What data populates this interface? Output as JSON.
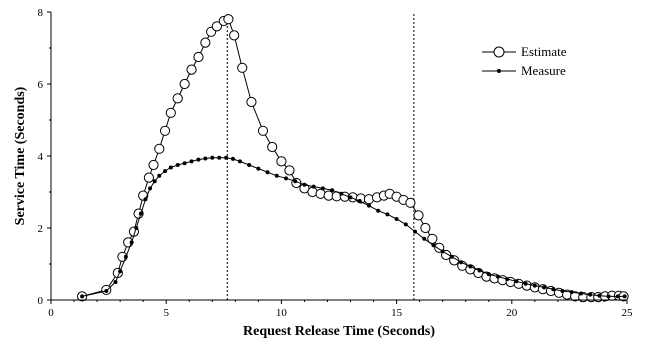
{
  "chart_data": {
    "type": "line",
    "xlabel": "Request Release Time (Seconds)",
    "ylabel": "Service Time (Seconds)",
    "xlim": [
      0,
      25
    ],
    "ylim": [
      0,
      8
    ],
    "xticks": [
      0,
      5,
      10,
      15,
      20,
      25
    ],
    "yticks": [
      0,
      2,
      4,
      6,
      8
    ],
    "grid": false,
    "legend_position": "top-right",
    "reference_lines_x": [
      7.65,
      15.75
    ],
    "series": [
      {
        "name": "Estimate",
        "marker": "open-circle",
        "x": [
          1.35,
          2.4,
          2.9,
          3.1,
          3.35,
          3.6,
          3.8,
          4.0,
          4.25,
          4.45,
          4.7,
          4.95,
          5.2,
          5.5,
          5.8,
          6.1,
          6.4,
          6.7,
          6.95,
          7.2,
          7.5,
          7.7,
          7.95,
          8.3,
          8.7,
          9.2,
          9.6,
          10.0,
          10.35,
          10.65,
          11.0,
          11.35,
          11.7,
          12.05,
          12.4,
          12.75,
          13.1,
          13.45,
          13.8,
          14.15,
          14.45,
          14.7,
          15.0,
          15.3,
          15.6,
          15.95,
          16.25,
          16.55,
          16.85,
          17.15,
          17.5,
          17.85,
          18.2,
          18.55,
          18.9,
          19.25,
          19.6,
          19.95,
          20.3,
          20.65,
          21.0,
          21.35,
          21.7,
          22.05,
          22.4,
          22.75,
          23.1,
          23.45,
          23.75,
          24.05,
          24.35,
          24.65,
          24.85
        ],
        "y": [
          0.1,
          0.28,
          0.75,
          1.2,
          1.6,
          1.9,
          2.4,
          2.9,
          3.4,
          3.75,
          4.2,
          4.7,
          5.2,
          5.6,
          6.0,
          6.4,
          6.75,
          7.15,
          7.45,
          7.6,
          7.75,
          7.8,
          7.35,
          6.45,
          5.5,
          4.7,
          4.25,
          3.85,
          3.6,
          3.25,
          3.1,
          3.0,
          2.95,
          2.9,
          2.88,
          2.87,
          2.85,
          2.82,
          2.8,
          2.85,
          2.9,
          2.95,
          2.87,
          2.78,
          2.7,
          2.35,
          2.0,
          1.7,
          1.45,
          1.25,
          1.1,
          0.95,
          0.85,
          0.75,
          0.65,
          0.6,
          0.55,
          0.5,
          0.45,
          0.4,
          0.35,
          0.3,
          0.25,
          0.2,
          0.15,
          0.1,
          0.08,
          0.08,
          0.08,
          0.1,
          0.12,
          0.12,
          0.1
        ]
      },
      {
        "name": "Measure",
        "marker": "filled-dot",
        "x": [
          1.35,
          2.4,
          2.8,
          3.0,
          3.25,
          3.5,
          3.7,
          3.9,
          4.1,
          4.3,
          4.5,
          4.7,
          4.95,
          5.2,
          5.5,
          5.8,
          6.1,
          6.4,
          6.7,
          7.0,
          7.3,
          7.6,
          7.9,
          8.2,
          8.6,
          9.0,
          9.4,
          9.8,
          10.2,
          10.6,
          11.0,
          11.4,
          11.8,
          12.2,
          12.6,
          13.0,
          13.4,
          13.8,
          14.2,
          14.6,
          15.0,
          15.4,
          15.8,
          16.2,
          16.6,
          17.0,
          17.4,
          17.8,
          18.2,
          18.6,
          19.0,
          19.4,
          19.8,
          20.2,
          20.6,
          21.0,
          21.4,
          21.8,
          22.2,
          22.6,
          23.0,
          23.4,
          23.8,
          24.2,
          24.6,
          24.9
        ],
        "y": [
          0.1,
          0.25,
          0.5,
          0.8,
          1.2,
          1.6,
          2.0,
          2.4,
          2.8,
          3.1,
          3.3,
          3.45,
          3.58,
          3.68,
          3.75,
          3.8,
          3.85,
          3.9,
          3.93,
          3.95,
          3.95,
          3.95,
          3.92,
          3.85,
          3.75,
          3.65,
          3.55,
          3.45,
          3.38,
          3.3,
          3.2,
          3.15,
          3.1,
          3.05,
          2.95,
          2.85,
          2.75,
          2.62,
          2.48,
          2.38,
          2.25,
          2.1,
          1.9,
          1.7,
          1.52,
          1.35,
          1.2,
          1.05,
          0.93,
          0.82,
          0.72,
          0.65,
          0.58,
          0.52,
          0.45,
          0.4,
          0.35,
          0.3,
          0.25,
          0.22,
          0.18,
          0.15,
          0.12,
          0.1,
          0.1,
          0.1
        ]
      }
    ]
  }
}
